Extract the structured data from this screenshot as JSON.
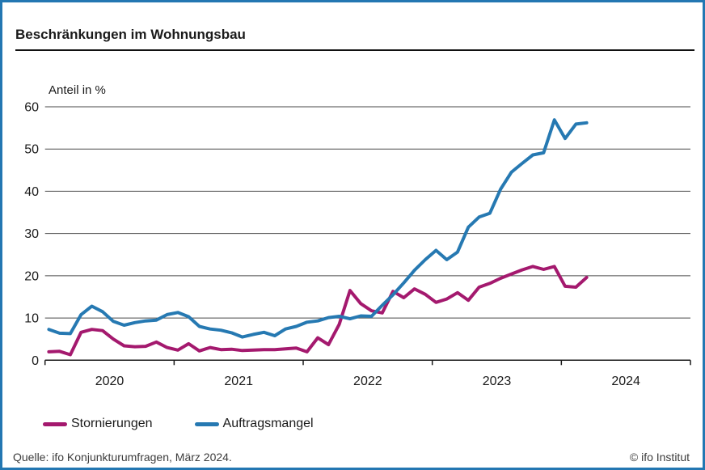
{
  "header": {
    "title": "Beschränkungen im Wohnungsbau"
  },
  "chart_data": {
    "type": "line",
    "title": "Beschränkungen im Wohnungsbau",
    "ylabel": "Anteil in %",
    "unit_label": "Anteil in %",
    "ylim": [
      0,
      60
    ],
    "y_ticks": [
      0,
      10,
      20,
      30,
      40,
      50,
      60
    ],
    "x_tick_labels": [
      "2020",
      "2021",
      "2022",
      "2023",
      "2024"
    ],
    "x_start": "2020-01",
    "x_end": "2024-03",
    "x_frequency": "monthly",
    "grid": true,
    "legend_position": "bottom",
    "series": [
      {
        "name": "Stornierungen",
        "color": "#a4196e",
        "values": [
          2.0,
          2.1,
          1.3,
          6.6,
          7.3,
          7.0,
          5.0,
          3.4,
          3.2,
          3.3,
          4.3,
          3.0,
          2.4,
          3.9,
          2.2,
          3.0,
          2.5,
          2.6,
          2.3,
          2.4,
          2.5,
          2.5,
          2.7,
          2.9,
          2.0,
          5.3,
          3.7,
          8.5,
          16.5,
          13.4,
          11.7,
          11.2,
          16.3,
          14.8,
          16.9,
          15.6,
          13.7,
          14.5,
          16.0,
          14.2,
          17.3,
          18.2,
          19.4,
          20.4,
          21.4,
          22.2,
          21.5,
          22.2,
          17.5,
          17.3,
          19.6
        ]
      },
      {
        "name": "Auftragsmangel",
        "color": "#2679b2",
        "values": [
          7.3,
          6.4,
          6.3,
          10.8,
          12.8,
          11.5,
          9.2,
          8.3,
          8.9,
          9.3,
          9.5,
          10.8,
          11.3,
          10.3,
          8.0,
          7.4,
          7.1,
          6.5,
          5.5,
          6.1,
          6.6,
          5.8,
          7.4,
          8.0,
          9.0,
          9.3,
          10.1,
          10.4,
          9.8,
          10.5,
          10.4,
          13.0,
          15.5,
          18.3,
          21.3,
          23.8,
          26.0,
          23.8,
          25.6,
          31.5,
          33.9,
          34.8,
          40.5,
          44.5,
          46.6,
          48.6,
          49.1,
          56.9,
          52.5,
          55.9,
          56.2
        ]
      }
    ]
  },
  "footer": {
    "source": "Quelle: ifo Konjunkturumfragen, März 2024.",
    "copyright": "© ifo Institut"
  },
  "colors": {
    "frame_blue": "#2377b2",
    "gridline": "#4a4a4a",
    "axis_line": "#1a1a1a",
    "text": "#1a1a1a",
    "footer_text": "#3c3c3c",
    "stornierungen_line": "#a4196e",
    "auftragsmangel_line": "#2679b2",
    "background": "#ffffff"
  }
}
